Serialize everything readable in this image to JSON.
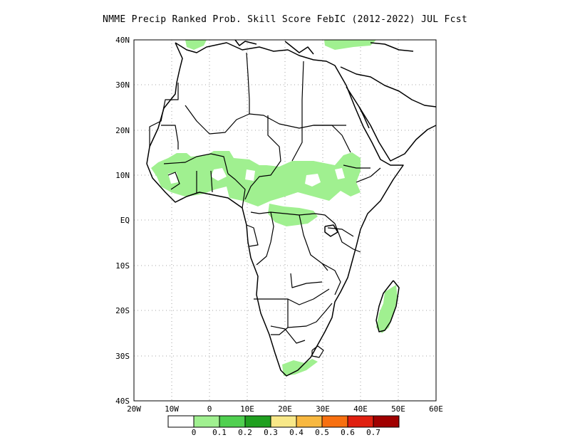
{
  "title": "NMME Precip Ranked Prob. Skill Score FebIC (2012-2022) JUL Fcst",
  "map": {
    "lon_range": [
      -20,
      60
    ],
    "lat_range": [
      -40,
      40
    ],
    "lat_labels": [
      "40N",
      "30N",
      "20N",
      "10N",
      "EQ",
      "10S",
      "20S",
      "30S",
      "40S"
    ],
    "lon_labels": [
      "20W",
      "10W",
      "0",
      "10E",
      "20E",
      "30E",
      "40E",
      "50E",
      "60E"
    ],
    "gridlines": "dotted",
    "region": "Africa"
  },
  "colorbar": {
    "labels": [
      "0",
      "0.1",
      "0.2",
      "0.3",
      "0.4",
      "0.5",
      "0.6",
      "0.7"
    ],
    "colors": [
      "#ffffff",
      "#a0f090",
      "#50d050",
      "#20a020",
      "#f8e888",
      "#f8b840",
      "#f87010",
      "#e02010",
      "#a00000"
    ]
  }
}
